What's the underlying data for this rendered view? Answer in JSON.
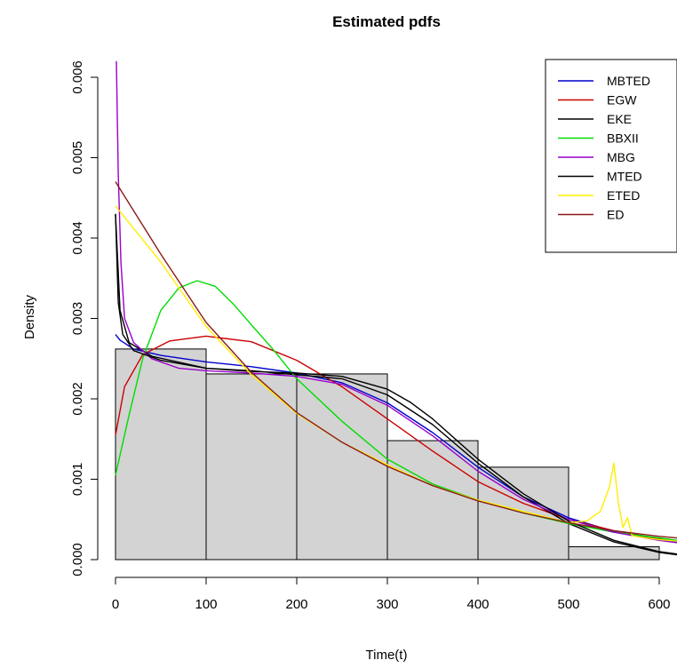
{
  "chart_data": {
    "type": "line",
    "title": "Estimated pdfs",
    "xlabel": "Time(t)",
    "ylabel": "Density",
    "xlim": [
      0,
      620
    ],
    "ylim": [
      0,
      0.0062
    ],
    "x_ticks": [
      0,
      100,
      200,
      300,
      400,
      500,
      600
    ],
    "x_tick_labels": [
      "0",
      "100",
      "200",
      "300",
      "400",
      "500",
      "600"
    ],
    "y_ticks": [
      0,
      0.001,
      0.002,
      0.003,
      0.004,
      0.005,
      0.006
    ],
    "y_tick_labels": [
      "0.000",
      "0.001",
      "0.002",
      "0.003",
      "0.004",
      "0.005",
      "0.006"
    ],
    "legend_position": "top-right",
    "grid": false,
    "histogram": {
      "bin_edges": [
        0,
        100,
        200,
        300,
        400,
        500,
        600
      ],
      "densities": [
        0.00262,
        0.00231,
        0.00231,
        0.00148,
        0.00115,
        0.00016
      ],
      "fill": "#d3d3d3",
      "stroke": "#000000"
    },
    "series": [
      {
        "name": "MBTED",
        "color": "#0000cc",
        "x": [
          0,
          5,
          20,
          50,
          100,
          150,
          200,
          250,
          300,
          350,
          400,
          450,
          500,
          550,
          600,
          620
        ],
        "y": [
          0.0028,
          0.00273,
          0.00262,
          0.00254,
          0.00246,
          0.0024,
          0.00232,
          0.0022,
          0.00195,
          0.00158,
          0.00115,
          0.00078,
          0.00052,
          0.00035,
          0.00025,
          0.00022
        ]
      },
      {
        "name": "EGW",
        "color": "#cc0000",
        "x": [
          0,
          10,
          30,
          60,
          100,
          150,
          200,
          250,
          300,
          350,
          400,
          450,
          500,
          550,
          600,
          620
        ],
        "y": [
          0.00155,
          0.00215,
          0.00255,
          0.00272,
          0.00278,
          0.00271,
          0.00248,
          0.00215,
          0.00175,
          0.00135,
          0.00097,
          0.0007,
          0.0005,
          0.00036,
          0.00026,
          0.00023
        ]
      },
      {
        "name": "EKE",
        "color": "#000000",
        "x": [
          0,
          5,
          15,
          40,
          100,
          150,
          200,
          250,
          300,
          350,
          400,
          450,
          500,
          550,
          600,
          620
        ],
        "y": [
          0.0043,
          0.0031,
          0.0027,
          0.00253,
          0.00238,
          0.00235,
          0.0023,
          0.00225,
          0.00205,
          0.00168,
          0.0012,
          0.00078,
          0.00045,
          0.00022,
          9e-05,
          6e-05
        ]
      },
      {
        "name": "BBXII",
        "color": "#00dd00",
        "x": [
          0,
          15,
          30,
          50,
          70,
          90,
          110,
          130,
          150,
          175,
          200,
          250,
          300,
          350,
          400,
          450,
          500,
          550,
          600,
          620
        ],
        "y": [
          0.00105,
          0.0018,
          0.0025,
          0.0031,
          0.00338,
          0.00347,
          0.0034,
          0.00318,
          0.00292,
          0.0026,
          0.00225,
          0.00172,
          0.00125,
          0.00094,
          0.00074,
          0.00058,
          0.00045,
          0.00034,
          0.00027,
          0.00024
        ]
      },
      {
        "name": "MBG",
        "color": "#9900cc",
        "x": [
          1,
          3,
          6,
          10,
          20,
          40,
          70,
          100,
          150,
          200,
          250,
          300,
          350,
          400,
          450,
          500,
          550,
          600,
          620
        ],
        "y": [
          0.0062,
          0.0048,
          0.0037,
          0.003,
          0.0027,
          0.0025,
          0.00238,
          0.00235,
          0.00232,
          0.00228,
          0.00218,
          0.00192,
          0.00154,
          0.0011,
          0.00075,
          0.0005,
          0.00034,
          0.00024,
          0.00021
        ]
      },
      {
        "name": "MTED",
        "color": "#000000",
        "x": [
          0,
          3,
          8,
          20,
          50,
          100,
          150,
          200,
          250,
          300,
          325,
          350,
          400,
          450,
          500,
          550,
          600,
          620
        ],
        "y": [
          0.0043,
          0.0032,
          0.0028,
          0.0026,
          0.00248,
          0.00238,
          0.00234,
          0.00232,
          0.00228,
          0.00212,
          0.00196,
          0.00175,
          0.00125,
          0.00082,
          0.00048,
          0.00024,
          0.0001,
          7e-05
        ]
      },
      {
        "name": "ETED",
        "color": "#ffee00",
        "x": [
          0,
          50,
          100,
          150,
          200,
          250,
          300,
          350,
          400,
          450,
          500,
          520,
          535,
          545,
          550,
          555,
          560,
          565,
          570,
          580,
          600,
          620
        ],
        "y": [
          0.0044,
          0.0037,
          0.0029,
          0.0023,
          0.00182,
          0.00146,
          0.00118,
          0.00092,
          0.00074,
          0.0006,
          0.00046,
          0.00048,
          0.0006,
          0.0009,
          0.0012,
          0.0007,
          0.0004,
          0.00052,
          0.0003,
          0.00028,
          0.00025,
          0.00023
        ]
      },
      {
        "name": "ED",
        "color": "#8b1a1a",
        "x": [
          0,
          50,
          100,
          150,
          200,
          250,
          300,
          350,
          400,
          450,
          500,
          550,
          600,
          620
        ],
        "y": [
          0.0047,
          0.0038,
          0.00295,
          0.00233,
          0.00183,
          0.00146,
          0.00116,
          0.00092,
          0.00073,
          0.00058,
          0.00046,
          0.00036,
          0.00029,
          0.00027
        ]
      }
    ]
  }
}
